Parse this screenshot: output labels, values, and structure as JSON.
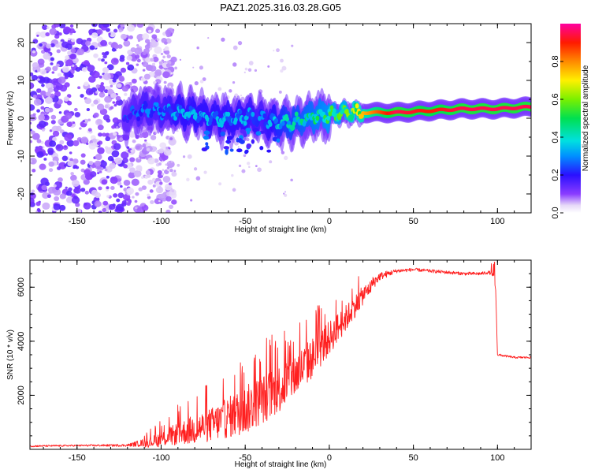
{
  "title": "PAZ1.2025.316.03.28.G05",
  "chart_data": [
    {
      "type": "heatmap",
      "title": "PAZ1.2025.316.03.28.G05",
      "xlabel": "Height of straight line (km)",
      "ylabel": "Frequency (Hz)",
      "xlim": [
        -178,
        120
      ],
      "ylim": [
        -25,
        25
      ],
      "xticks": [
        -150,
        -100,
        -50,
        0,
        50,
        100
      ],
      "xtick_labels": [
        "-150",
        "-100",
        "-50",
        "0",
        "50",
        "100"
      ],
      "yticks": [
        -20,
        -10,
        0,
        10,
        20
      ],
      "ytick_labels": [
        "-20",
        "-10",
        "0",
        "10",
        "20"
      ],
      "colorbar": {
        "label": "Normalized spectral amplitude",
        "range": [
          0,
          1
        ],
        "ticks": [
          0.0,
          0.2,
          0.4,
          0.6,
          0.8
        ],
        "tick_labels": [
          "0.0",
          "0.2",
          "0.4",
          "0.6",
          "0.8"
        ]
      },
      "ridge": {
        "description_points": [
          {
            "height": -120,
            "freq": 0.5,
            "amp": 0.25
          },
          {
            "height": -110,
            "freq": 2.5,
            "amp": 0.3
          },
          {
            "height": -100,
            "freq": 2.0,
            "amp": 0.3
          },
          {
            "height": -90,
            "freq": 1.5,
            "amp": 0.35
          },
          {
            "height": -80,
            "freq": 1.0,
            "amp": 0.35
          },
          {
            "height": -70,
            "freq": 0.0,
            "amp": 0.35
          },
          {
            "height": -60,
            "freq": -0.5,
            "amp": 0.35
          },
          {
            "height": -50,
            "freq": 0.5,
            "amp": 0.35
          },
          {
            "height": -40,
            "freq": 0.0,
            "amp": 0.3
          },
          {
            "height": -30,
            "freq": -1.5,
            "amp": 0.4
          },
          {
            "height": -20,
            "freq": -1.0,
            "amp": 0.45
          },
          {
            "height": -10,
            "freq": 0.5,
            "amp": 0.5
          },
          {
            "height": 0,
            "freq": 1.0,
            "amp": 0.55
          },
          {
            "height": 10,
            "freq": 1.5,
            "amp": 0.6
          },
          {
            "height": 20,
            "freq": 1.5,
            "amp": 0.75
          },
          {
            "height": 40,
            "freq": 1.5,
            "amp": 0.95
          },
          {
            "height": 60,
            "freq": 2.0,
            "amp": 0.9
          },
          {
            "height": 80,
            "freq": 2.5,
            "amp": 0.95
          },
          {
            "height": 100,
            "freq": 2.5,
            "amp": 0.95
          },
          {
            "height": 120,
            "freq": 3.0,
            "amp": 0.95
          }
        ],
        "noise_region": {
          "height_from": -178,
          "height_to": -110,
          "freq_from": -25,
          "freq_to": 25,
          "amp": 0.1
        }
      }
    },
    {
      "type": "line",
      "title": "",
      "xlabel": "Height of straight line (km)",
      "ylabel": "SNR (10 * v/v)",
      "xlim": [
        -178,
        120
      ],
      "ylim": [
        0,
        7000
      ],
      "xticks": [
        -150,
        -100,
        -50,
        0,
        50,
        100
      ],
      "xtick_labels": [
        "-150",
        "-100",
        "-50",
        "0",
        "50",
        "100"
      ],
      "yticks": [
        2000,
        4000,
        6000
      ],
      "ytick_labels": [
        "2000",
        "4000",
        "6000"
      ],
      "series": [
        {
          "name": "SNR",
          "color": "#ff2020",
          "x": [
            -178,
            -150,
            -120,
            -110,
            -100,
            -90,
            -80,
            -70,
            -60,
            -50,
            -40,
            -30,
            -20,
            -10,
            0,
            10,
            20,
            30,
            40,
            50,
            60,
            70,
            80,
            90,
            95,
            98,
            99,
            100,
            105,
            110,
            120
          ],
          "y": [
            120,
            140,
            150,
            250,
            450,
            700,
            900,
            1100,
            1400,
            1700,
            2100,
            2500,
            3000,
            3600,
            4300,
            5000,
            5800,
            6400,
            6600,
            6650,
            6600,
            6550,
            6500,
            6500,
            6550,
            6400,
            5800,
            3500,
            3450,
            3400,
            3400
          ],
          "noise_envelope": [
            40,
            40,
            60,
            200,
            400,
            600,
            800,
            900,
            1100,
            1300,
            1300,
            1300,
            1200,
            1100,
            900,
            700,
            500,
            200,
            100,
            80,
            80,
            80,
            80,
            80,
            80,
            100,
            100,
            60,
            50,
            50,
            50
          ]
        }
      ]
    }
  ]
}
